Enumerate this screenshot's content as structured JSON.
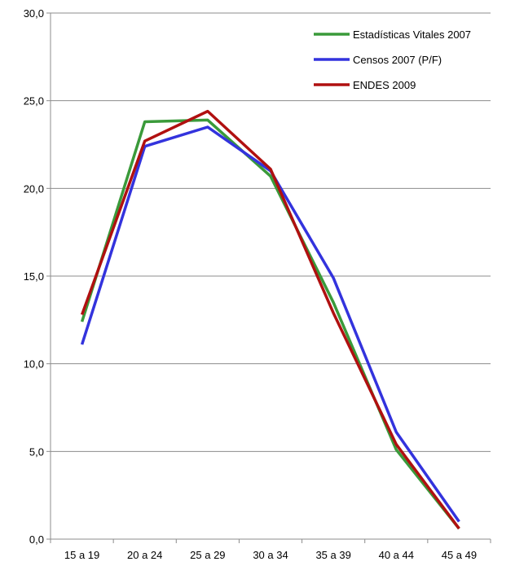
{
  "chart_data": {
    "type": "line",
    "categories": [
      "15 a 19",
      "20 a 24",
      "25 a 29",
      "30 a 34",
      "35 a 39",
      "40 a 44",
      "45 a 49"
    ],
    "ylim": [
      0,
      30
    ],
    "yticks": [
      "0,0",
      "5,0",
      "10,0",
      "15,0",
      "20,0",
      "25,0",
      "30,0"
    ],
    "grid": "horizontal",
    "legend_position": "top-right",
    "series": [
      {
        "name": "Estadísticas Vitales 2007",
        "color": "#3a9a3a",
        "values": [
          12.4,
          23.8,
          23.9,
          20.7,
          13.5,
          5.1,
          0.6
        ]
      },
      {
        "name": "Censos 2007 (P/F)",
        "color": "#3333dd",
        "values": [
          11.1,
          22.4,
          23.5,
          21.0,
          14.9,
          6.1,
          1.0
        ]
      },
      {
        "name": "ENDES 2009",
        "color": "#b01010",
        "values": [
          12.8,
          22.7,
          24.4,
          21.1,
          12.9,
          5.4,
          0.6
        ]
      }
    ]
  }
}
